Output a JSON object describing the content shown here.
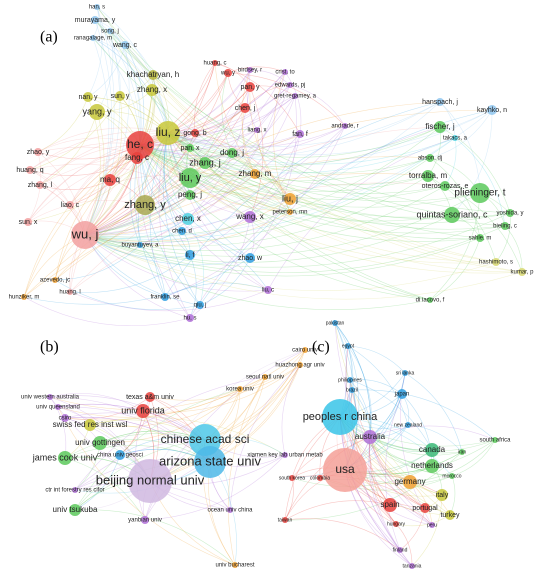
{
  "panels": [
    {
      "label": "(a)",
      "nodes": [
        {
          "label": "han, s",
          "color": "#8fc6ee"
        },
        {
          "label": "murayama, y",
          "color": "#8fc6ee"
        },
        {
          "label": "song, j",
          "color": "#8fc6ee"
        },
        {
          "label": "ranagalage, m",
          "color": "#8fc6ee"
        },
        {
          "label": "wang, c",
          "color": "#8fc6ee"
        },
        {
          "label": "khachatryan, h",
          "color": "#b4b43c"
        },
        {
          "label": "zhang, x",
          "color": "#c8c83a"
        },
        {
          "label": "nan, y",
          "color": "#c8c83a"
        },
        {
          "label": "sun, y",
          "color": "#c8c83a"
        },
        {
          "label": "yang, y",
          "color": "#c8c83a"
        },
        {
          "label": "liu, z",
          "color": "#c8c83a"
        },
        {
          "label": "he, c",
          "color": "#e8413c"
        },
        {
          "label": "fang, c",
          "color": "#e8413c"
        },
        {
          "label": "ma, q",
          "color": "#e8413c"
        },
        {
          "label": "zhao, y",
          "color": "#f2a0a0"
        },
        {
          "label": "huang, q",
          "color": "#f2a0a0"
        },
        {
          "label": "zhang, l",
          "color": "#f2a0a0"
        },
        {
          "label": "sun, x",
          "color": "#f2a0a0"
        },
        {
          "label": "liao, c",
          "color": "#f2a0a0"
        },
        {
          "label": "wu, j",
          "color": "#f2a0a0"
        },
        {
          "label": "zhang, y",
          "color": "#a8a850"
        },
        {
          "label": "liu, y",
          "color": "#5cc95c"
        },
        {
          "label": "peng, j",
          "color": "#5cc95c"
        },
        {
          "label": "zhang, j",
          "color": "#5cc95c"
        },
        {
          "label": "pan, x",
          "color": "#5cc95c"
        },
        {
          "label": "gong, b",
          "color": "#e8413c"
        },
        {
          "label": "dong, j",
          "color": "#5cc95c"
        },
        {
          "label": "zhang, m",
          "color": "#f0a030"
        },
        {
          "label": "liu, j",
          "color": "#f0a030"
        },
        {
          "label": "peterson, mn",
          "color": "#f0a030"
        },
        {
          "label": "chen, j",
          "color": "#e8413c"
        },
        {
          "label": "liang, x",
          "color": "#b070d8"
        },
        {
          "label": "huang, c",
          "color": "#e8413c"
        },
        {
          "label": "wu, y",
          "color": "#e8413c"
        },
        {
          "label": "birdsey, r",
          "color": "#b070d8"
        },
        {
          "label": "pan, y",
          "color": "#e8413c"
        },
        {
          "label": "crist, to",
          "color": "#b070d8"
        },
        {
          "label": "edwards, pj",
          "color": "#b070d8"
        },
        {
          "label": "gret-regamey, a",
          "color": "#b070d8"
        },
        {
          "label": "fan, f",
          "color": "#b070d8"
        },
        {
          "label": "andrade, r",
          "color": "#b070d8"
        },
        {
          "label": "chen, x",
          "color": "#4dd0e0"
        },
        {
          "label": "wang, x",
          "color": "#b070d8"
        },
        {
          "label": "chen, d",
          "color": "#2e9ee0"
        },
        {
          "label": "buyantuyev, a",
          "color": "#2e9ee0"
        },
        {
          "label": "zhao, w",
          "color": "#2e9ee0"
        },
        {
          "label": "li, f",
          "color": "#2e9ee0"
        },
        {
          "label": "franklin, se",
          "color": "#2e9ee0"
        },
        {
          "label": "qiu, j",
          "color": "#2e9ee0"
        },
        {
          "label": "hu, s",
          "color": "#b070d8"
        },
        {
          "label": "liu, c",
          "color": "#b070d8"
        },
        {
          "label": "azevedo, jc",
          "color": "#f0a030"
        },
        {
          "label": "hunziker, m",
          "color": "#f0a030"
        },
        {
          "label": "huang, l",
          "color": "#f2a0a0"
        },
        {
          "label": "hanspach, j",
          "color": "#8fc6ee"
        },
        {
          "label": "kayhko, n",
          "color": "#8fc6ee"
        },
        {
          "label": "fischer, j",
          "color": "#5cc95c"
        },
        {
          "label": "takacs, a",
          "color": "#4dd0e0"
        },
        {
          "label": "abson, dj",
          "color": "#5cc95c"
        },
        {
          "label": "torralba, m",
          "color": "#5cc95c"
        },
        {
          "label": "oteros-rozas, e",
          "color": "#5cc95c"
        },
        {
          "label": "plieninger, t",
          "color": "#5cc95c"
        },
        {
          "label": "quintas-soriano, c",
          "color": "#5cc95c"
        },
        {
          "label": "yoshida, y",
          "color": "#5cc95c"
        },
        {
          "label": "bieling, c",
          "color": "#5cc95c"
        },
        {
          "label": "sahle, m",
          "color": "#5cc95c"
        },
        {
          "label": "hashimoto, s",
          "color": "#d8d870"
        },
        {
          "label": "kumar, p",
          "color": "#d8d870"
        },
        {
          "label": "di iacovo, f",
          "color": "#5cc95c"
        }
      ]
    },
    {
      "label": "(b)",
      "nodes": [
        {
          "label": "cairo univ",
          "color": "#f0a030"
        },
        {
          "label": "huazhong agr univ",
          "color": "#f0a030"
        },
        {
          "label": "seoul natl univ",
          "color": "#f0a030"
        },
        {
          "label": "korea univ",
          "color": "#f0a030"
        },
        {
          "label": "texas a&m univ",
          "color": "#e8413c"
        },
        {
          "label": "univ western australia",
          "color": "#b070d8"
        },
        {
          "label": "univ queensland",
          "color": "#b070d8"
        },
        {
          "label": "csiro",
          "color": "#b070d8"
        },
        {
          "label": "univ florida",
          "color": "#e8413c"
        },
        {
          "label": "swiss fed res inst wsl",
          "color": "#c8c83a"
        },
        {
          "label": "univ gottingen",
          "color": "#5cc95c"
        },
        {
          "label": "china univ geosci",
          "color": "#2e9ee0"
        },
        {
          "label": "james cook univ",
          "color": "#5cc95c"
        },
        {
          "label": "chinese acad sci",
          "color": "#4dc8e8"
        },
        {
          "label": "arizona state univ",
          "color": "#4db8e8"
        },
        {
          "label": "beijing normal univ",
          "color": "#d0b8e0"
        },
        {
          "label": "xiamen key lab urban metab",
          "color": "#b070d8"
        },
        {
          "label": "ctr int forestry res cifor",
          "color": "#b070d8"
        },
        {
          "label": "univ tsukuba",
          "color": "#5cc95c"
        },
        {
          "label": "yanbian univ",
          "color": "#b070d8"
        },
        {
          "label": "ocean univ china",
          "color": "#b070d8"
        },
        {
          "label": "univ bucharest",
          "color": "#f0a030"
        }
      ]
    },
    {
      "label": "(c)",
      "nodes": [
        {
          "label": "pakistan",
          "color": "#2e9ee0"
        },
        {
          "label": "egypt",
          "color": "#2e9ee0"
        },
        {
          "label": "philippines",
          "color": "#2e9ee0"
        },
        {
          "label": "brazil",
          "color": "#2e9ee0"
        },
        {
          "label": "sri lanka",
          "color": "#2e9ee0"
        },
        {
          "label": "japan",
          "color": "#2e9ee0"
        },
        {
          "label": "peoples r china",
          "color": "#38c4e8"
        },
        {
          "label": "australia",
          "color": "#b070d8"
        },
        {
          "label": "new zealand",
          "color": "#2e9ee0"
        },
        {
          "label": "canada",
          "color": "#3cb878"
        },
        {
          "label": "south africa",
          "color": "#5cc95c"
        },
        {
          "label": "iran",
          "color": "#5cc95c"
        },
        {
          "label": "netherlands",
          "color": "#5cc95c"
        },
        {
          "label": "morocco",
          "color": "#5cc95c"
        },
        {
          "label": "usa",
          "color": "#f4a098"
        },
        {
          "label": "south korea",
          "color": "#e8413c"
        },
        {
          "label": "colombia",
          "color": "#e8413c"
        },
        {
          "label": "germany",
          "color": "#f0a030"
        },
        {
          "label": "taiwan",
          "color": "#e8413c"
        },
        {
          "label": "italy",
          "color": "#c8c83a"
        },
        {
          "label": "turkey",
          "color": "#c8c83a"
        },
        {
          "label": "spain",
          "color": "#e8413c"
        },
        {
          "label": "portugal",
          "color": "#e8413c"
        },
        {
          "label": "hungary",
          "color": "#e8413c"
        },
        {
          "label": "peru",
          "color": "#b070d8"
        },
        {
          "label": "finland",
          "color": "#b070d8"
        },
        {
          "label": "tanzania",
          "color": "#b070d8"
        }
      ]
    }
  ]
}
